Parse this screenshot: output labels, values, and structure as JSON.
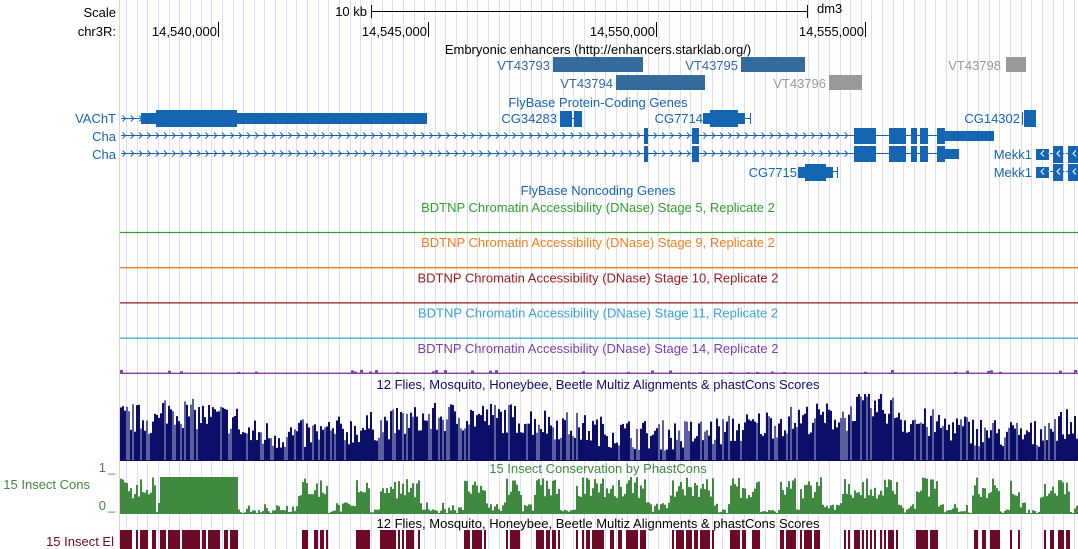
{
  "ruler": {
    "scale_label": "Scale",
    "chrom_label": "chr3R:",
    "scale_bar": "10 kb",
    "assembly": "dm3",
    "ticks": [
      "14,540,000",
      "14,545,000",
      "14,550,000",
      "14,555,000"
    ]
  },
  "enhancers": {
    "title": "Embryonic enhancers (http://enhancers.starklab.org/)",
    "items": [
      "VT43793",
      "VT43794",
      "VT43795",
      "VT43796",
      "VT43798"
    ],
    "color": "#356a9c",
    "gray": "#999999"
  },
  "genes": {
    "title": "FlyBase Protein-Coding Genes",
    "items": [
      "VAChT",
      "Cha",
      "Cha",
      "CG34283",
      "CG7714",
      "CG14302",
      "Mekk1",
      "Mekk1",
      "CG7715"
    ],
    "color": "#1565b3"
  },
  "noncoding": {
    "title": "FlyBase Noncoding Genes"
  },
  "dnase": [
    {
      "title": "BDTNP Chromatin Accessibility (DNase) Stage 5, Replicate 2",
      "color": "#33a02c"
    },
    {
      "title": "BDTNP Chromatin Accessibility (DNase) Stage 9, Replicate 2",
      "color": "#f07f1a"
    },
    {
      "title": "BDTNP Chromatin Accessibility (DNase) Stage 10, Replicate 2",
      "color": "#9b1b1b"
    },
    {
      "title": "BDTNP Chromatin Accessibility (DNase) Stage 11, Replicate 2",
      "color": "#3aa3d6"
    },
    {
      "title": "BDTNP Chromatin Accessibility (DNase) Stage 14, Replicate 2",
      "color": "#7e3fa8"
    }
  ],
  "multiz": {
    "title": "12 Flies, Mosquito, Honeybee, Beetle Multiz Alignments & phastCons Scores",
    "color": "#0b0f68"
  },
  "cons": {
    "title": "15 Insect Conservation by PhastCons",
    "label": "15 Insect Cons",
    "ymax": "1",
    "ymin": "0",
    "color": "#3f8a3f"
  },
  "elements": {
    "title": "12 Flies, Mosquito, Honeybee, Beetle Multiz Alignments & phastCons Scores",
    "label": "15 Insect El",
    "color": "#6d0a28"
  }
}
